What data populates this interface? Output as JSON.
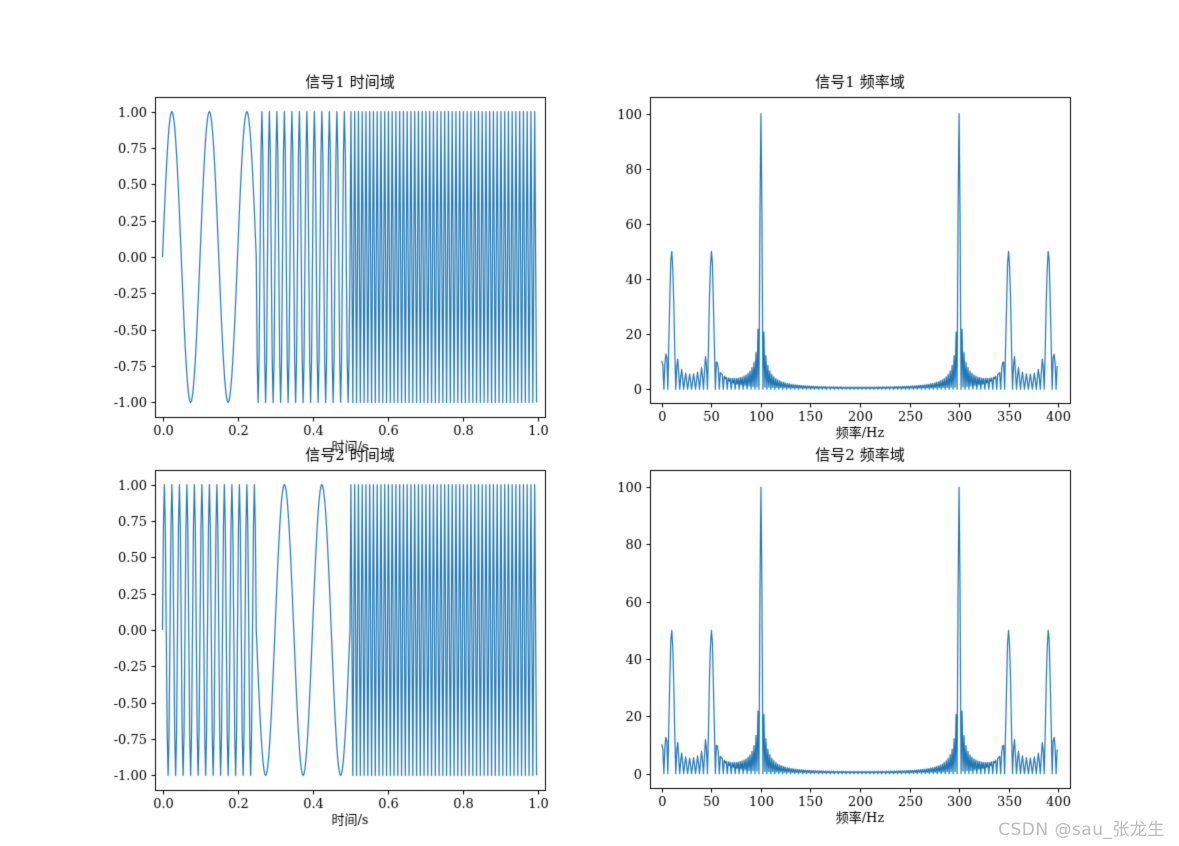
{
  "page": {
    "background": "#ffffff",
    "watermark": "CSDN @sau_张龙生",
    "watermark_color": "#bcbcbc"
  },
  "chart_data": [
    {
      "id": "signal1-time",
      "type": "line",
      "title": "信号1 时间域",
      "xlabel": "时间/s",
      "ylabel": "",
      "line_color": "#1f77b4",
      "grid": false,
      "signal": {
        "kind": "time",
        "fs": 400,
        "duration": 1,
        "segments": [
          {
            "t0": 0,
            "t1": 0.25,
            "freq_hz": 10,
            "amplitude": 1
          },
          {
            "t0": 0.25,
            "t1": 0.5,
            "freq_hz": 50,
            "amplitude": 1
          },
          {
            "t0": 0.5,
            "t1": 1,
            "freq_hz": 100,
            "amplitude": 1
          }
        ]
      },
      "xlim": [
        -0.02,
        1.02
      ],
      "ylim": [
        -1.1,
        1.1
      ],
      "xticks": [
        0,
        0.2,
        0.4,
        0.6,
        0.8,
        1
      ],
      "xtick_labels": [
        "0.0",
        "0.2",
        "0.4",
        "0.6",
        "0.8",
        "1.0"
      ],
      "yticks": [
        -1,
        -0.75,
        -0.5,
        -0.25,
        0,
        0.25,
        0.5,
        0.75,
        1
      ],
      "ytick_labels": [
        "-1.00",
        "-0.75",
        "-0.50",
        "-0.25",
        "0.00",
        "0.25",
        "0.50",
        "0.75",
        "1.00"
      ]
    },
    {
      "id": "signal1-frequency",
      "type": "line",
      "title": "信号1 频率域",
      "xlabel": "频率/Hz",
      "ylabel": "",
      "line_color": "#1f77b4",
      "grid": false,
      "signal": {
        "kind": "spectrum",
        "fs": 400,
        "duration": 1,
        "segments": [
          {
            "t0": 0,
            "t1": 0.25,
            "freq_hz": 10,
            "amplitude": 1
          },
          {
            "t0": 0.25,
            "t1": 0.5,
            "freq_hz": 50,
            "amplitude": 1
          },
          {
            "t0": 0.5,
            "t1": 1,
            "freq_hz": 100,
            "amplitude": 1
          }
        ]
      },
      "peaks": [
        {
          "freq_hz": 10,
          "magnitude": 50
        },
        {
          "freq_hz": 50,
          "magnitude": 50
        },
        {
          "freq_hz": 100,
          "magnitude": 100
        },
        {
          "freq_hz": 300,
          "magnitude": 100
        },
        {
          "freq_hz": 350,
          "magnitude": 50
        },
        {
          "freq_hz": 390,
          "magnitude": 50
        }
      ],
      "xlim": [
        -12,
        412
      ],
      "ylim": [
        -5,
        106
      ],
      "xticks": [
        0,
        50,
        100,
        150,
        200,
        250,
        300,
        350,
        400
      ],
      "xtick_labels": [
        "0",
        "50",
        "100",
        "150",
        "200",
        "250",
        "300",
        "350",
        "400"
      ],
      "yticks": [
        0,
        20,
        40,
        60,
        80,
        100
      ],
      "ytick_labels": [
        "0",
        "20",
        "40",
        "60",
        "80",
        "100"
      ]
    },
    {
      "id": "signal2-time",
      "type": "line",
      "title": "信号2 时间域",
      "xlabel": "时间/s",
      "ylabel": "",
      "line_color": "#1f77b4",
      "grid": false,
      "signal": {
        "kind": "time",
        "fs": 400,
        "duration": 1,
        "segments": [
          {
            "t0": 0,
            "t1": 0.25,
            "freq_hz": 50,
            "amplitude": 1
          },
          {
            "t0": 0.25,
            "t1": 0.5,
            "freq_hz": 10,
            "amplitude": 1
          },
          {
            "t0": 0.5,
            "t1": 1,
            "freq_hz": 100,
            "amplitude": 1
          }
        ]
      },
      "xlim": [
        -0.02,
        1.02
      ],
      "ylim": [
        -1.1,
        1.1
      ],
      "xticks": [
        0,
        0.2,
        0.4,
        0.6,
        0.8,
        1
      ],
      "xtick_labels": [
        "0.0",
        "0.2",
        "0.4",
        "0.6",
        "0.8",
        "1.0"
      ],
      "yticks": [
        -1,
        -0.75,
        -0.5,
        -0.25,
        0,
        0.25,
        0.5,
        0.75,
        1
      ],
      "ytick_labels": [
        "-1.00",
        "-0.75",
        "-0.50",
        "-0.25",
        "0.00",
        "0.25",
        "0.50",
        "0.75",
        "1.00"
      ]
    },
    {
      "id": "signal2-frequency",
      "type": "line",
      "title": "信号2 频率域",
      "xlabel": "频率/Hz",
      "ylabel": "",
      "line_color": "#1f77b4",
      "grid": false,
      "signal": {
        "kind": "spectrum",
        "fs": 400,
        "duration": 1,
        "segments": [
          {
            "t0": 0,
            "t1": 0.25,
            "freq_hz": 50,
            "amplitude": 1
          },
          {
            "t0": 0.25,
            "t1": 0.5,
            "freq_hz": 10,
            "amplitude": 1
          },
          {
            "t0": 0.5,
            "t1": 1,
            "freq_hz": 100,
            "amplitude": 1
          }
        ]
      },
      "peaks": [
        {
          "freq_hz": 10,
          "magnitude": 50
        },
        {
          "freq_hz": 50,
          "magnitude": 50
        },
        {
          "freq_hz": 100,
          "magnitude": 100
        },
        {
          "freq_hz": 300,
          "magnitude": 100
        },
        {
          "freq_hz": 350,
          "magnitude": 50
        },
        {
          "freq_hz": 390,
          "magnitude": 50
        }
      ],
      "xlim": [
        -12,
        412
      ],
      "ylim": [
        -5,
        106
      ],
      "xticks": [
        0,
        50,
        100,
        150,
        200,
        250,
        300,
        350,
        400
      ],
      "xtick_labels": [
        "0",
        "50",
        "100",
        "150",
        "200",
        "250",
        "300",
        "350",
        "400"
      ],
      "yticks": [
        0,
        20,
        40,
        60,
        80,
        100
      ],
      "ytick_labels": [
        "0",
        "20",
        "40",
        "60",
        "80",
        "100"
      ]
    }
  ]
}
